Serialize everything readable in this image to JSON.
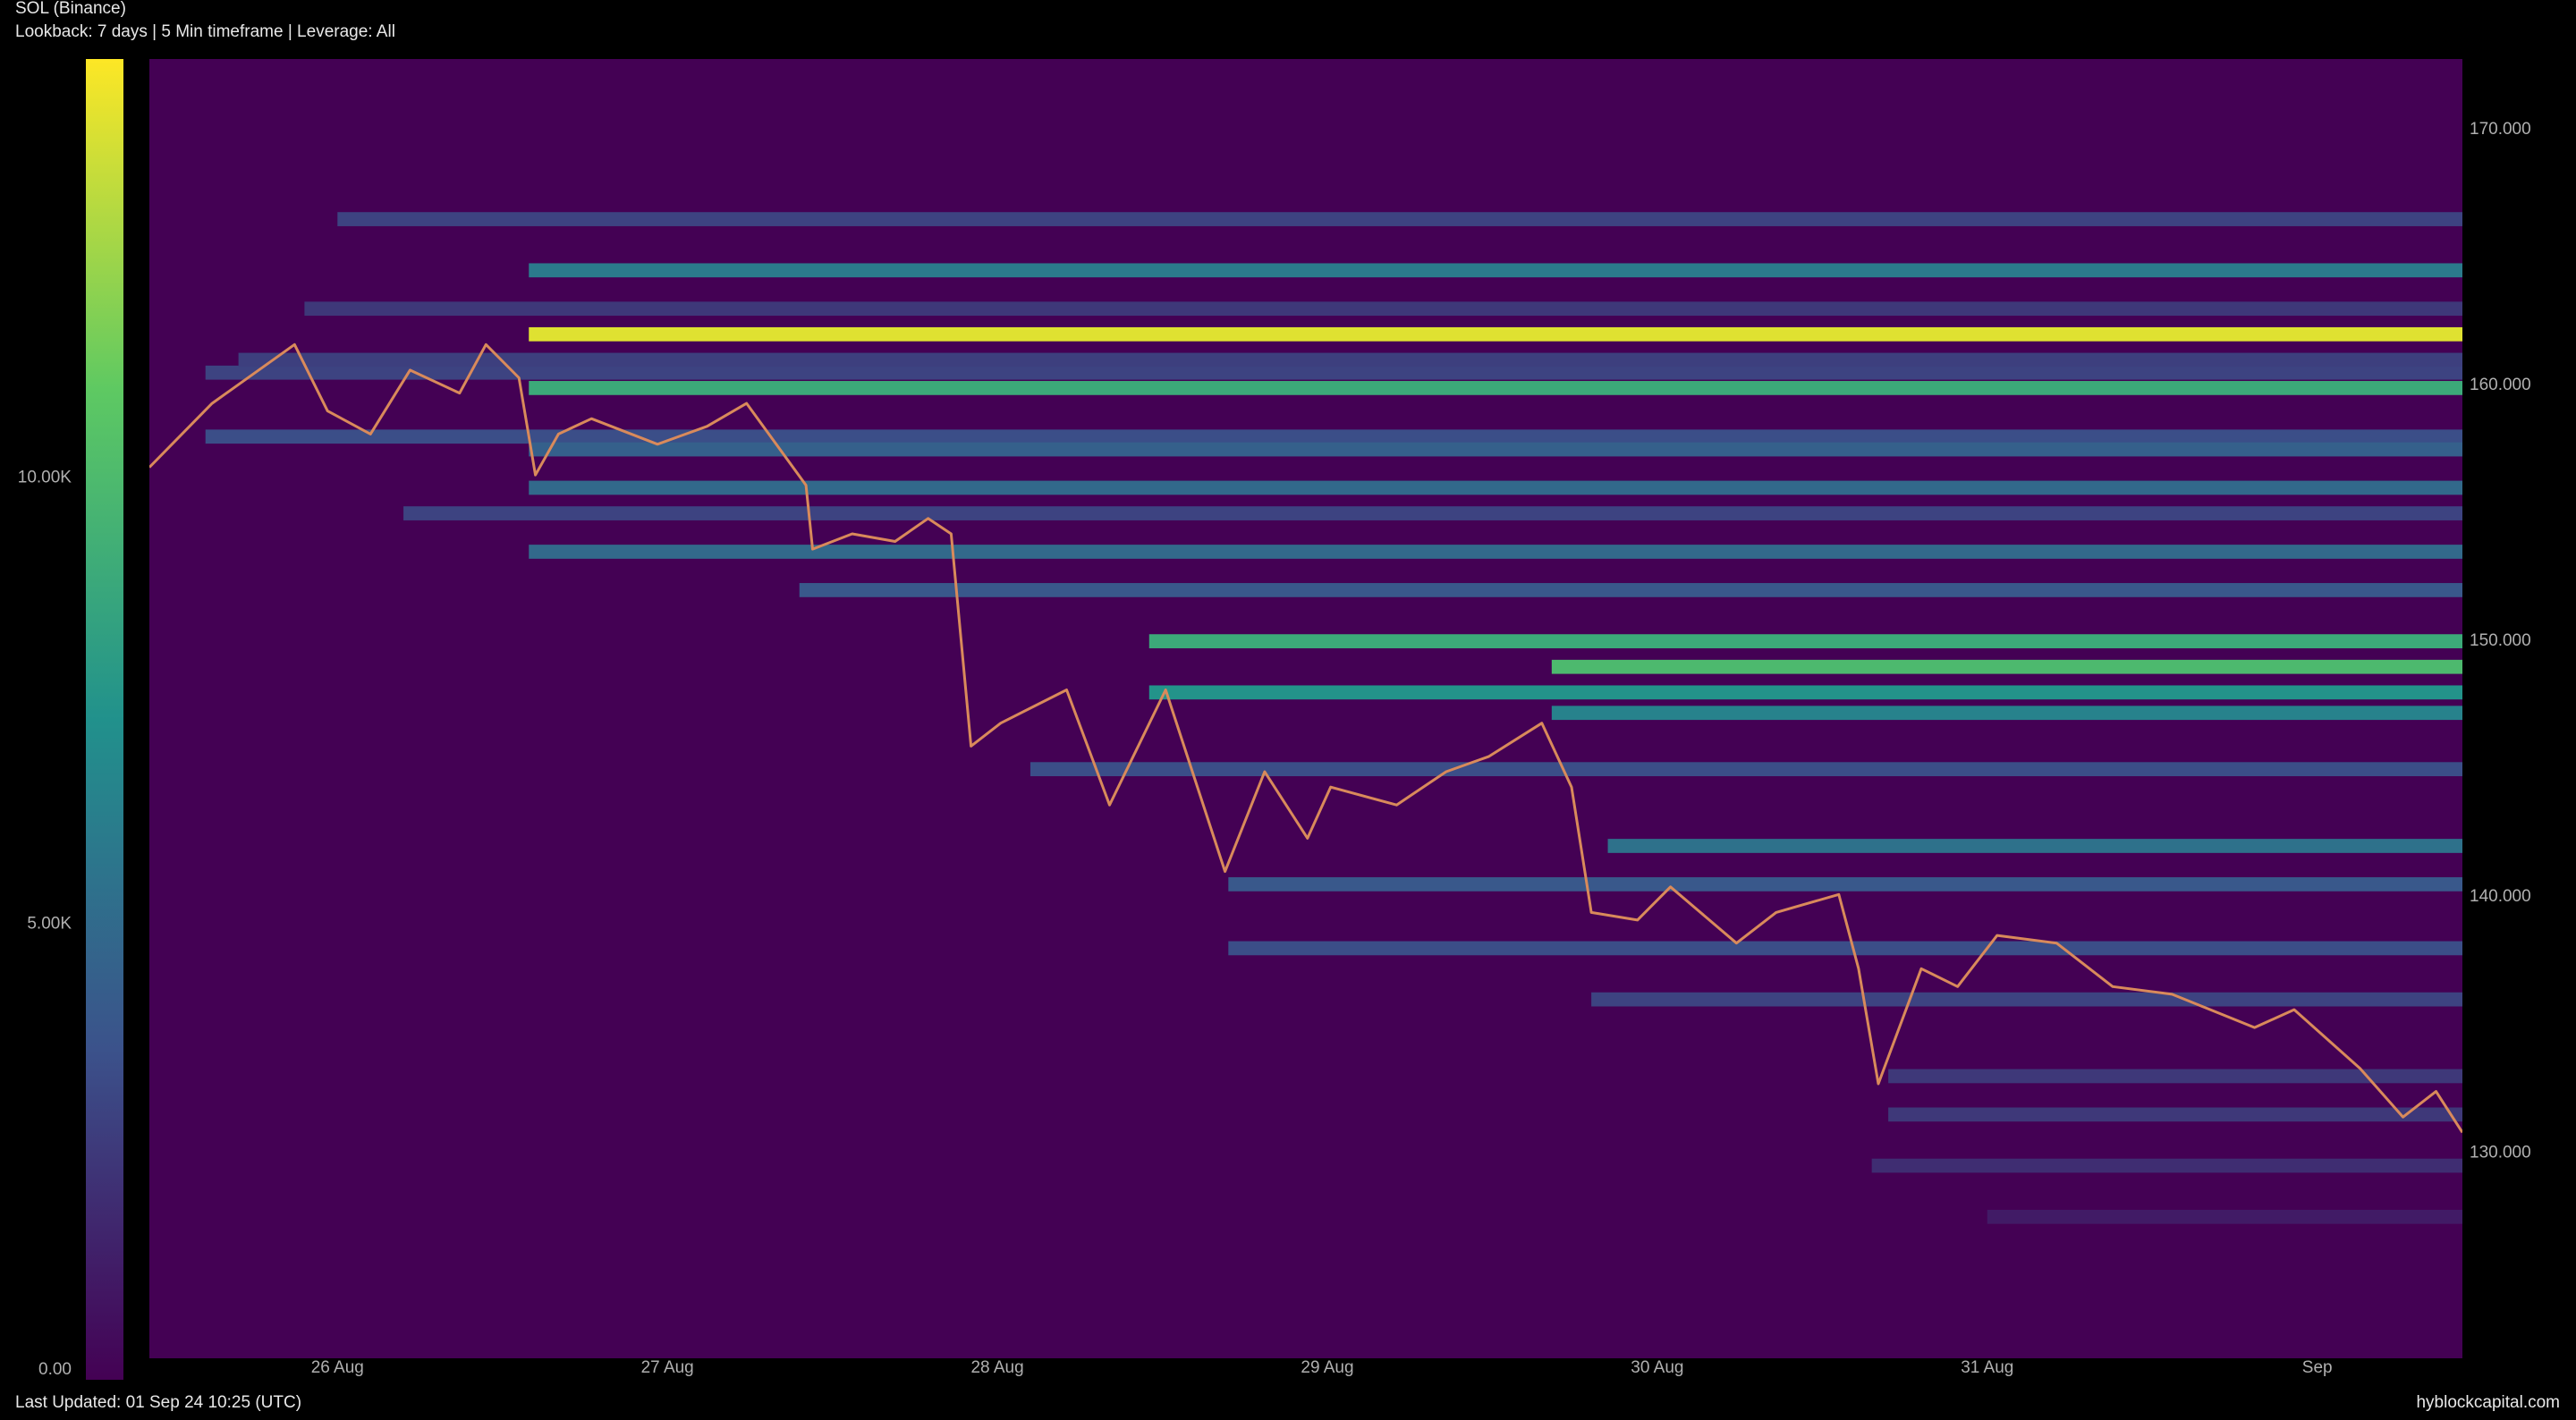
{
  "chart_data": {
    "type": "heatmap",
    "title": "SOL (Binance)",
    "subtitle": "Lookback: 7 days | 5 Min timeframe | Leverage: All",
    "footer": "Last Updated: 01 Sep 24 10:25 (UTC)",
    "source": "hyblockcapital.com",
    "colormap": "viridis",
    "xlim": [
      25.43,
      32.44
    ],
    "xticks": [
      {
        "value": 26,
        "label": "26 Aug"
      },
      {
        "value": 27,
        "label": "27 Aug"
      },
      {
        "value": 28,
        "label": "28 Aug"
      },
      {
        "value": 29,
        "label": "29 Aug"
      },
      {
        "value": 30,
        "label": "30 Aug"
      },
      {
        "value": 31,
        "label": "31 Aug"
      },
      {
        "value": 32,
        "label": "Sep"
      }
    ],
    "ylim": [
      121.97,
      172.76
    ],
    "yticks": [
      {
        "value": 130,
        "label": "130.000"
      },
      {
        "value": 140,
        "label": "140.000"
      },
      {
        "value": 150,
        "label": "150.000"
      },
      {
        "value": 160,
        "label": "160.000"
      },
      {
        "value": 170,
        "label": "170.000"
      }
    ],
    "clim": [
      0,
      14700
    ],
    "cticks": [
      {
        "value": 0,
        "label": "0.00"
      },
      {
        "value": 5000,
        "label": "5.00K"
      },
      {
        "value": 10000,
        "label": "10.00K"
      }
    ],
    "level_prices": [
      166.5,
      164.5,
      162.0,
      160.5,
      159.9,
      158.0,
      157.5,
      156.0,
      153.5,
      152.0,
      150.0,
      149.0,
      148.0,
      147.2,
      145.0,
      142.0,
      140.5,
      138.0,
      136.0,
      133.0,
      131.5,
      129.5,
      127.5,
      163.0,
      161.0,
      155.0
    ],
    "level_values": [
      3000,
      6000,
      14000,
      3000,
      9000,
      3500,
      4500,
      5000,
      5000,
      4000,
      9000,
      10000,
      7500,
      6500,
      3500,
      5500,
      4000,
      3500,
      3000,
      2500,
      2500,
      2000,
      1200,
      2500,
      2800,
      3000
    ],
    "level_starts": [
      26.0,
      26.58,
      26.58,
      25.6,
      26.58,
      25.6,
      26.58,
      26.58,
      26.58,
      27.4,
      28.46,
      29.68,
      28.46,
      29.68,
      28.1,
      29.85,
      28.7,
      28.7,
      29.8,
      30.7,
      30.7,
      30.65,
      31.0,
      25.9,
      25.7,
      26.2
    ],
    "series": [
      {
        "name": "SOL",
        "color": "#d98a5b",
        "x": [
          25.43,
          25.62,
          25.87,
          25.97,
          26.1,
          26.22,
          26.37,
          26.45,
          26.55,
          26.6,
          26.67,
          26.77,
          26.97,
          27.12,
          27.24,
          27.42,
          27.44,
          27.56,
          27.69,
          27.79,
          27.86,
          27.92,
          28.01,
          28.21,
          28.34,
          28.51,
          28.69,
          28.81,
          28.94,
          29.01,
          29.21,
          29.36,
          29.49,
          29.65,
          29.74,
          29.8,
          29.94,
          30.04,
          30.24,
          30.36,
          30.55,
          30.61,
          30.67,
          30.8,
          30.91,
          31.03,
          31.21,
          31.38,
          31.56,
          31.81,
          31.93,
          32.13,
          32.26,
          32.36,
          32.44
        ],
        "values": [
          156.8,
          159.3,
          161.6,
          159.0,
          158.1,
          160.6,
          159.7,
          161.6,
          160.3,
          156.5,
          158.1,
          158.7,
          157.7,
          158.4,
          159.3,
          156.1,
          153.6,
          154.2,
          153.9,
          154.8,
          154.2,
          145.9,
          146.8,
          148.1,
          143.6,
          148.1,
          141.0,
          144.9,
          142.3,
          144.3,
          143.6,
          144.9,
          145.5,
          146.8,
          144.3,
          139.4,
          139.1,
          140.4,
          138.2,
          139.4,
          140.1,
          137.2,
          132.7,
          137.2,
          136.5,
          138.5,
          138.2,
          136.5,
          136.2,
          134.9,
          135.6,
          133.3,
          131.4,
          132.4,
          130.8
        ]
      }
    ]
  }
}
